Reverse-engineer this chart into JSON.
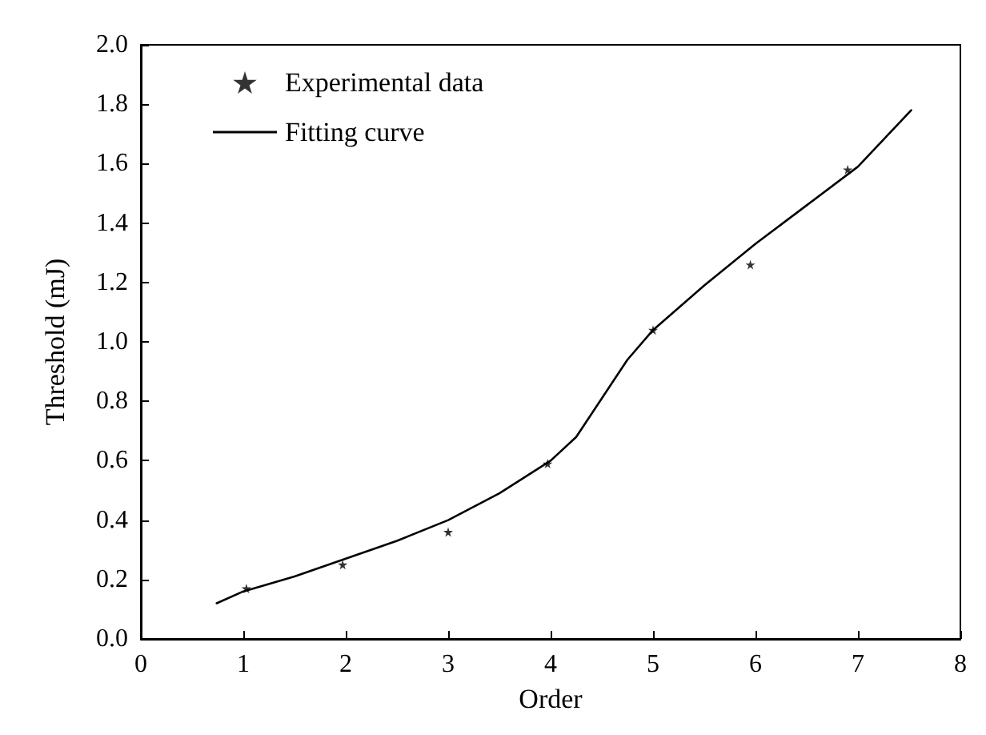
{
  "chart_data": {
    "type": "scatter",
    "xlabel": "Order",
    "ylabel": "Threshold (mJ)",
    "xlim": [
      0,
      8
    ],
    "ylim": [
      0,
      2
    ],
    "xticks": [
      0,
      1,
      2,
      3,
      4,
      5,
      6,
      7,
      8
    ],
    "yticks": [
      {
        "value": 0,
        "label": "0.0"
      },
      0.2,
      0.4,
      0.6,
      0.8,
      {
        "value": 1,
        "label": "1.0"
      },
      1.2,
      1.4,
      1.6,
      1.8,
      {
        "value": 2,
        "label": "2.0"
      }
    ],
    "grid": false,
    "legend": "top left",
    "series": [
      {
        "name": "Experimental data",
        "marker": "star",
        "color": "#000000",
        "x": [
          1.03,
          1.97,
          3.0,
          3.97,
          5.0,
          5.95,
          6.9
        ],
        "values": [
          0.17,
          0.25,
          0.36,
          0.59,
          1.04,
          1.26,
          1.58
        ]
      },
      {
        "name": "Fitting curve",
        "type": "line",
        "marker": "none",
        "line_style": "solid",
        "color": "#000000",
        "x": [
          0.74,
          1,
          1.5,
          2,
          2.5,
          3,
          3.5,
          4,
          4.25,
          4.5,
          4.75,
          5,
          5.5,
          6,
          6.5,
          7,
          7.52
        ],
        "values": [
          0.12,
          0.16,
          0.21,
          0.27,
          0.33,
          0.4,
          0.49,
          0.6,
          0.68,
          0.81,
          0.94,
          1.04,
          1.19,
          1.33,
          1.46,
          1.59,
          1.78
        ]
      }
    ]
  }
}
